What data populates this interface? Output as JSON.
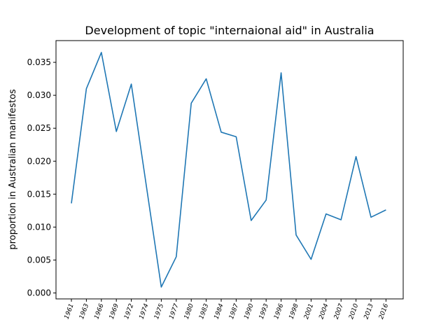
{
  "chart_data": {
    "type": "line",
    "title": "Development of topic \"internaional aid\" in Australia",
    "xlabel": "",
    "ylabel": "proportion in Australian manifestos",
    "categories": [
      "1961",
      "1963",
      "1966",
      "1969",
      "1972",
      "1974",
      "1975",
      "1977",
      "1980",
      "1983",
      "1984",
      "1987",
      "1990",
      "1993",
      "1996",
      "1998",
      "2001",
      "2004",
      "2007",
      "2010",
      "2013",
      "2016"
    ],
    "series": [
      {
        "values": [
          0.0136,
          0.031,
          0.0365,
          0.0245,
          0.0317,
          0.0163,
          0.0009,
          0.0055,
          0.0288,
          0.0325,
          0.0244,
          0.0237,
          0.011,
          0.0141,
          0.0334,
          0.0088,
          0.0051,
          0.012,
          0.0111,
          0.0207,
          0.0115,
          0.0126
        ],
        "color": "#1f77b4"
      }
    ],
    "yticks": [
      "0.000",
      "0.005",
      "0.010",
      "0.015",
      "0.020",
      "0.025",
      "0.030",
      "0.035"
    ],
    "ylim": [
      -0.0009,
      0.0383
    ],
    "grid": false
  }
}
